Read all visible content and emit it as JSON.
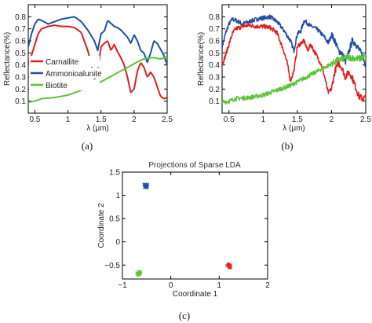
{
  "chart_data": [
    {
      "panel": "a",
      "type": "line",
      "caption": "(a)",
      "xlabel": "λ (μm)",
      "ylabel": "Reflectance(%)",
      "xlim": [
        0.4,
        2.5
      ],
      "ylim": [
        0.0,
        0.9
      ],
      "xticks": [
        0.5,
        1,
        1.5,
        2,
        2.5
      ],
      "xtick_labels": [
        "0.5",
        "1",
        "1.5",
        "2",
        "2.5"
      ],
      "yticks": [
        0.1,
        0.2,
        0.3,
        0.4,
        0.5,
        0.6,
        0.7,
        0.8
      ],
      "ytick_labels": [
        "0.1",
        "0.2",
        "0.3",
        "0.4",
        "0.5",
        "0.6",
        "0.7",
        "0.8"
      ],
      "legend_position": "left",
      "series": [
        {
          "name": "Carnallite",
          "color": "#e01e1e",
          "x": [
            0.4,
            0.45,
            0.5,
            0.55,
            0.6,
            0.7,
            0.8,
            0.9,
            1.0,
            1.1,
            1.2,
            1.3,
            1.35,
            1.4,
            1.45,
            1.5,
            1.55,
            1.6,
            1.65,
            1.7,
            1.75,
            1.8,
            1.85,
            1.9,
            1.95,
            2.0,
            2.05,
            2.1,
            2.15,
            2.2,
            2.25,
            2.3,
            2.35,
            2.4,
            2.45,
            2.5
          ],
          "y": [
            0.4,
            0.48,
            0.57,
            0.66,
            0.7,
            0.72,
            0.73,
            0.72,
            0.72,
            0.71,
            0.67,
            0.52,
            0.42,
            0.27,
            0.35,
            0.55,
            0.58,
            0.6,
            0.52,
            0.57,
            0.51,
            0.46,
            0.4,
            0.3,
            0.17,
            0.2,
            0.35,
            0.42,
            0.38,
            0.3,
            0.34,
            0.3,
            0.22,
            0.14,
            0.12,
            0.13
          ]
        },
        {
          "name": "Ammonioalunite",
          "color": "#1f4fa8",
          "x": [
            0.4,
            0.45,
            0.5,
            0.55,
            0.6,
            0.7,
            0.8,
            0.9,
            1.0,
            1.1,
            1.2,
            1.3,
            1.4,
            1.45,
            1.5,
            1.55,
            1.6,
            1.7,
            1.75,
            1.8,
            1.9,
            1.95,
            2.0,
            2.05,
            2.1,
            2.15,
            2.2,
            2.25,
            2.3,
            2.35,
            2.4,
            2.45,
            2.5
          ],
          "y": [
            0.55,
            0.66,
            0.74,
            0.78,
            0.77,
            0.74,
            0.76,
            0.78,
            0.79,
            0.8,
            0.76,
            0.69,
            0.6,
            0.52,
            0.66,
            0.68,
            0.77,
            0.72,
            0.71,
            0.69,
            0.63,
            0.58,
            0.65,
            0.6,
            0.52,
            0.5,
            0.42,
            0.5,
            0.6,
            0.58,
            0.53,
            0.48,
            0.4
          ]
        },
        {
          "name": "Biotite",
          "color": "#5cc33a",
          "x": [
            0.4,
            0.5,
            0.6,
            0.8,
            1.0,
            1.2,
            1.4,
            1.6,
            1.8,
            1.9,
            2.0,
            2.1,
            2.2,
            2.3,
            2.4,
            2.5
          ],
          "y": [
            0.09,
            0.1,
            0.12,
            0.13,
            0.15,
            0.19,
            0.23,
            0.29,
            0.35,
            0.38,
            0.41,
            0.44,
            0.46,
            0.46,
            0.45,
            0.47
          ]
        }
      ]
    },
    {
      "panel": "b",
      "type": "line",
      "caption": "(b)",
      "xlabel": "λ (μm)",
      "ylabel": "Reflectance(%)",
      "xlim": [
        0.4,
        2.5
      ],
      "ylim": [
        0.0,
        0.9
      ],
      "xticks": [
        0.5,
        1,
        1.5,
        2,
        2.5
      ],
      "xtick_labels": [
        "0.5",
        "1",
        "1.5",
        "2",
        "2.5"
      ],
      "yticks": [
        0.1,
        0.2,
        0.3,
        0.4,
        0.5,
        0.6,
        0.7,
        0.8
      ],
      "ytick_labels": [
        "0.1",
        "0.2",
        "0.3",
        "0.4",
        "0.5",
        "0.6",
        "0.7",
        "0.8"
      ],
      "series": [
        {
          "color": "#1f4fa8",
          "x": [
            0.4,
            0.45,
            0.5,
            0.55,
            0.6,
            0.7,
            0.8,
            0.9,
            1.0,
            1.1,
            1.2,
            1.3,
            1.4,
            1.45,
            1.5,
            1.55,
            1.6,
            1.7,
            1.75,
            1.8,
            1.9,
            1.95,
            2.0,
            2.05,
            2.1,
            2.15,
            2.2,
            2.25,
            2.3,
            2.35,
            2.4,
            2.45,
            2.5
          ],
          "y": [
            0.55,
            0.66,
            0.74,
            0.78,
            0.77,
            0.74,
            0.76,
            0.78,
            0.79,
            0.8,
            0.76,
            0.69,
            0.6,
            0.52,
            0.66,
            0.68,
            0.77,
            0.72,
            0.71,
            0.69,
            0.63,
            0.58,
            0.65,
            0.6,
            0.52,
            0.5,
            0.42,
            0.5,
            0.6,
            0.58,
            0.53,
            0.48,
            0.4
          ]
        },
        {
          "color": "#e01e1e",
          "x": [
            0.4,
            0.45,
            0.5,
            0.55,
            0.6,
            0.7,
            0.8,
            0.9,
            1.0,
            1.1,
            1.2,
            1.3,
            1.35,
            1.4,
            1.45,
            1.5,
            1.55,
            1.6,
            1.65,
            1.7,
            1.75,
            1.8,
            1.85,
            1.9,
            1.95,
            2.0,
            2.05,
            2.1,
            2.15,
            2.2,
            2.25,
            2.3,
            2.35,
            2.4,
            2.45,
            2.5
          ],
          "y": [
            0.4,
            0.48,
            0.57,
            0.66,
            0.7,
            0.72,
            0.73,
            0.72,
            0.72,
            0.71,
            0.67,
            0.52,
            0.42,
            0.27,
            0.35,
            0.55,
            0.58,
            0.6,
            0.52,
            0.57,
            0.51,
            0.46,
            0.4,
            0.3,
            0.17,
            0.2,
            0.35,
            0.42,
            0.38,
            0.3,
            0.34,
            0.3,
            0.22,
            0.14,
            0.12,
            0.13
          ]
        },
        {
          "color": "#5cc33a",
          "x": [
            0.4,
            0.5,
            0.6,
            0.8,
            1.0,
            1.2,
            1.4,
            1.6,
            1.8,
            1.9,
            2.0,
            2.1,
            2.2,
            2.3,
            2.4,
            2.5
          ],
          "y": [
            0.09,
            0.1,
            0.12,
            0.13,
            0.15,
            0.19,
            0.23,
            0.29,
            0.35,
            0.38,
            0.41,
            0.44,
            0.46,
            0.46,
            0.45,
            0.47
          ]
        }
      ]
    },
    {
      "panel": "c",
      "type": "scatter",
      "caption": "(c)",
      "title": "Projections of Sparse LDA",
      "xlabel": "Coordinate 1",
      "ylabel": "Coordinate 2",
      "xlim": [
        -1,
        2
      ],
      "ylim": [
        -0.8,
        1.5
      ],
      "xticks": [
        -1,
        0,
        1,
        2
      ],
      "xtick_labels": [
        "−1",
        "0",
        "1",
        "2"
      ],
      "yticks": [
        -0.5,
        0,
        0.5,
        1,
        1.5
      ],
      "ytick_labels": [
        "−0.5",
        "0",
        "0.5",
        "1",
        "1.5"
      ],
      "points": [
        {
          "x": -0.52,
          "y": 1.2,
          "color": "#1f4fa8"
        },
        {
          "x": 1.2,
          "y": -0.52,
          "color": "#e01e1e"
        },
        {
          "x": -0.66,
          "y": -0.68,
          "color": "#5cc33a"
        }
      ]
    }
  ]
}
